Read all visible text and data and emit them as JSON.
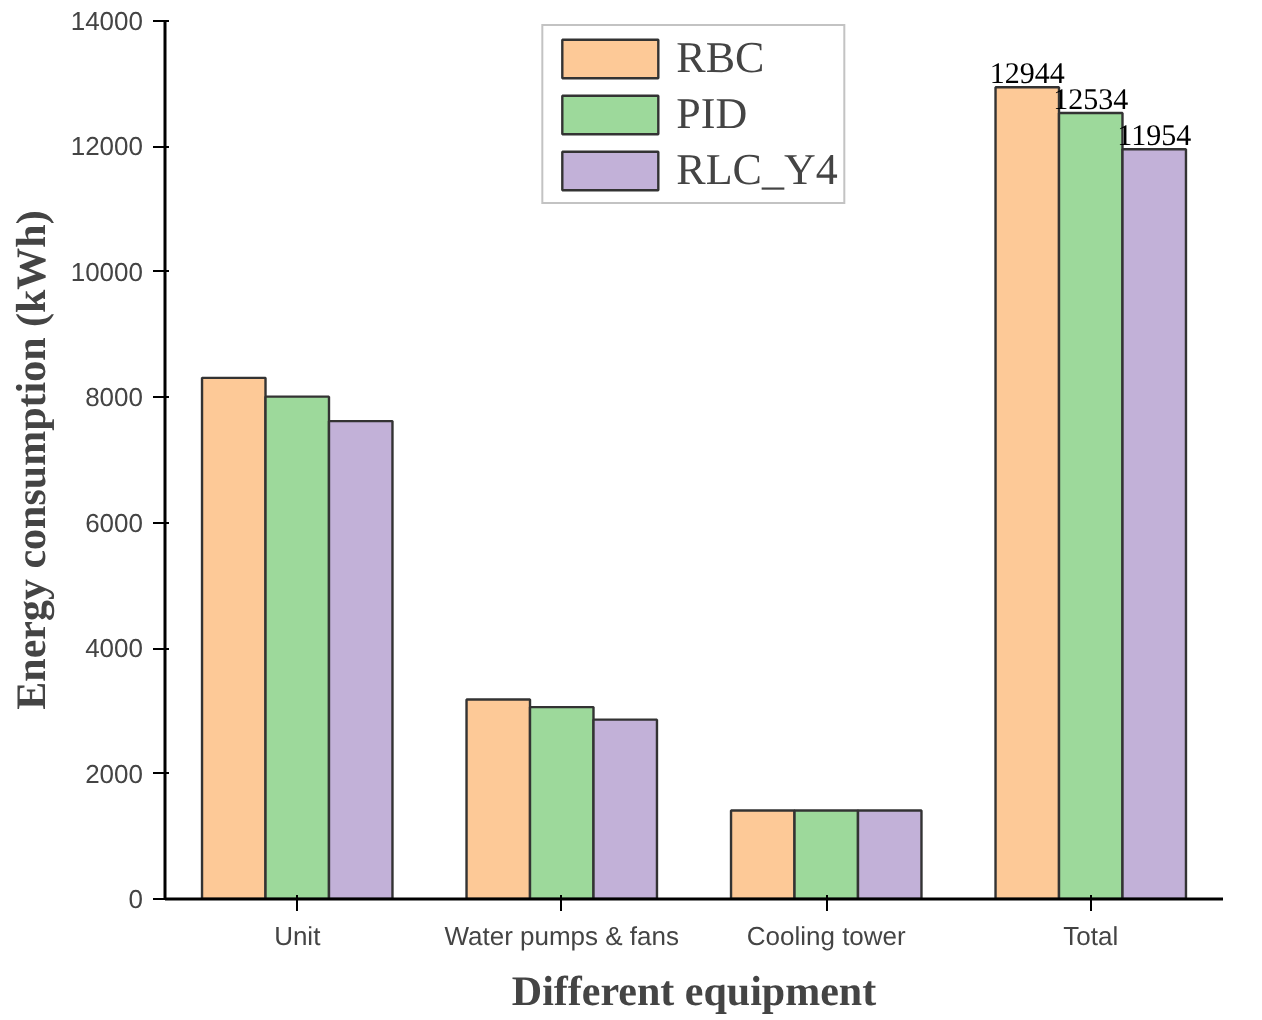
{
  "chart_data": {
    "type": "bar",
    "xlabel": "Different equipment",
    "ylabel": "Energy consumption (kWh)",
    "categories": [
      "Unit",
      "Water pumps & fans",
      "Cooling tower",
      "Total"
    ],
    "series": [
      {
        "name": "RBC",
        "color": "#fdc997",
        "values": [
          8310,
          3180,
          1410,
          12944
        ],
        "value_labels": [
          null,
          null,
          null,
          "12944"
        ]
      },
      {
        "name": "PID",
        "color": "#9dd99b",
        "values": [
          8010,
          3060,
          1410,
          12534
        ],
        "value_labels": [
          null,
          null,
          null,
          "12534"
        ]
      },
      {
        "name": "RLC_Y4",
        "color": "#c2b1d8",
        "values": [
          7620,
          2860,
          1410,
          11954
        ],
        "value_labels": [
          null,
          null,
          null,
          "11954"
        ]
      }
    ],
    "ylim": [
      0,
      14000
    ],
    "yticks": [
      0,
      2000,
      4000,
      6000,
      8000,
      10000,
      12000,
      14000
    ],
    "grid": false,
    "legend": "top"
  }
}
